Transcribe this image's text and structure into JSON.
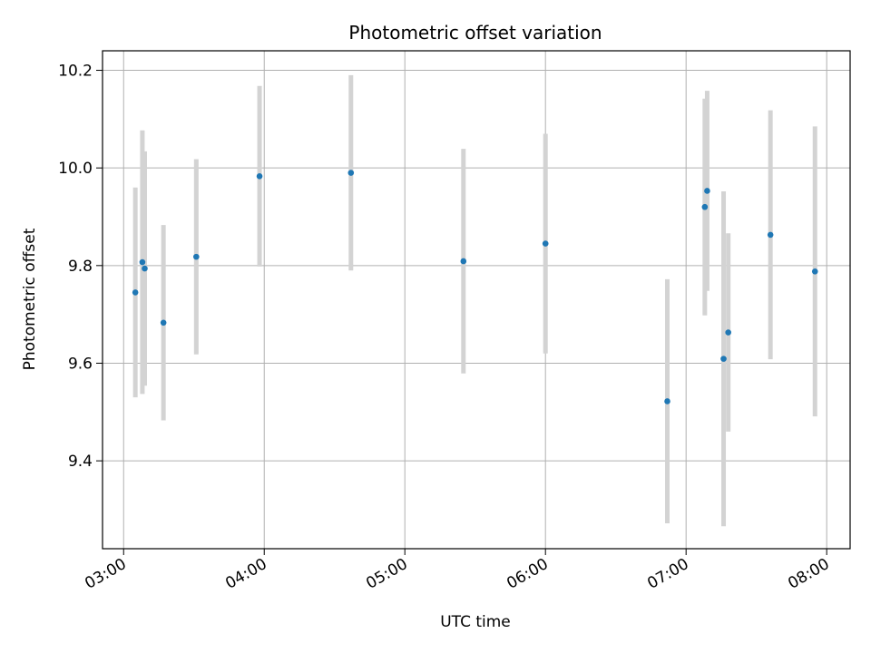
{
  "chart_data": {
    "type": "scatter",
    "title": "Photometric offset variation",
    "xlabel": "UTC time",
    "ylabel": "Photometric offset",
    "xlim": [
      "02:51",
      "08:10"
    ],
    "ylim": [
      9.22,
      10.24
    ],
    "x_ticks": [
      "03:00",
      "04:00",
      "05:00",
      "06:00",
      "07:00",
      "08:00"
    ],
    "y_ticks": [
      9.4,
      9.6,
      9.8,
      10.0,
      10.2
    ],
    "y_tick_labels": [
      "9.4",
      "9.6",
      "9.8",
      "10.0",
      "10.2"
    ],
    "grid": true,
    "legend": "none",
    "marker_color": "#1f77b4",
    "errorbar_color": "#d3d3d3",
    "series": [
      {
        "points": [
          {
            "x": "03:05",
            "y": 9.745,
            "err": 0.215
          },
          {
            "x": "03:08",
            "y": 9.807,
            "err": 0.27
          },
          {
            "x": "03:09",
            "y": 9.794,
            "err": 0.24
          },
          {
            "x": "03:17",
            "y": 9.683,
            "err": 0.2
          },
          {
            "x": "03:31",
            "y": 9.818,
            "err": 0.2
          },
          {
            "x": "03:58",
            "y": 9.983,
            "err": 0.185
          },
          {
            "x": "04:37",
            "y": 9.99,
            "err": 0.2
          },
          {
            "x": "05:25",
            "y": 9.809,
            "err": 0.23
          },
          {
            "x": "06:00",
            "y": 9.845,
            "err": 0.225
          },
          {
            "x": "06:52",
            "y": 9.522,
            "err": 0.25
          },
          {
            "x": "07:08",
            "y": 9.92,
            "err": 0.222
          },
          {
            "x": "07:09",
            "y": 9.953,
            "err": 0.205
          },
          {
            "x": "07:16",
            "y": 9.609,
            "err": 0.343
          },
          {
            "x": "07:18",
            "y": 9.663,
            "err": 0.203
          },
          {
            "x": "07:36",
            "y": 9.863,
            "err": 0.255
          },
          {
            "x": "07:55",
            "y": 9.788,
            "err": 0.297
          }
        ]
      }
    ]
  }
}
